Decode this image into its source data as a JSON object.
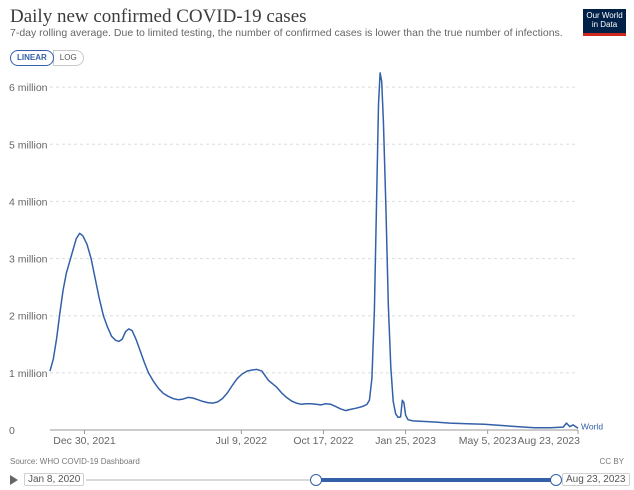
{
  "header": {
    "title": "Daily new confirmed COVID-19 cases",
    "subtitle": "7-day rolling average. Due to limited testing, the number of confirmed cases is lower than the true number of infections."
  },
  "logo": {
    "line1": "Our World",
    "line2": "in Data",
    "bg_color": "#002147",
    "accent_color": "#ce261e"
  },
  "controls": {
    "linear_label": "LINEAR",
    "log_label": "LOG",
    "active": "linear"
  },
  "footer": {
    "source": "Source: WHO COVID-19 Dashboard",
    "license": "CC BY"
  },
  "timeline": {
    "start_label": "Jan 8, 2020",
    "end_label": "Aug 23, 2023",
    "start_fraction": 0.49,
    "end_fraction": 1.0
  },
  "chart_data": {
    "type": "line",
    "xlabel": "",
    "ylabel": "",
    "line_color": "#3360a9",
    "grid": "horizontal-dashed",
    "yaxis_scale": "linear",
    "ylim": [
      0,
      6300000
    ],
    "xlim": [
      "2021-11-18",
      "2023-08-23"
    ],
    "y_ticks": [
      {
        "value": 0,
        "label": "0"
      },
      {
        "value": 1000000,
        "label": "1 million"
      },
      {
        "value": 2000000,
        "label": "2 million"
      },
      {
        "value": 3000000,
        "label": "3 million"
      },
      {
        "value": 4000000,
        "label": "4 million"
      },
      {
        "value": 5000000,
        "label": "5 million"
      },
      {
        "value": 6000000,
        "label": "6 million"
      }
    ],
    "x_ticks": [
      {
        "date": "2021-12-30",
        "label": "Dec 30, 2021"
      },
      {
        "date": "2022-07-09",
        "label": "Jul 9, 2022"
      },
      {
        "date": "2022-10-17",
        "label": "Oct 17, 2022"
      },
      {
        "date": "2023-01-25",
        "label": "Jan 25, 2023"
      },
      {
        "date": "2023-05-05",
        "label": "May 5, 2023"
      },
      {
        "date": "2023-08-23",
        "label": "Aug 23, 2023"
      }
    ],
    "series": [
      {
        "name": "World",
        "points": [
          [
            "2021-11-18",
            1030000
          ],
          [
            "2021-11-22",
            1240000
          ],
          [
            "2021-11-26",
            1600000
          ],
          [
            "2021-11-30",
            2050000
          ],
          [
            "2021-12-04",
            2450000
          ],
          [
            "2021-12-08",
            2750000
          ],
          [
            "2021-12-12",
            2950000
          ],
          [
            "2021-12-16",
            3150000
          ],
          [
            "2021-12-20",
            3350000
          ],
          [
            "2021-12-24",
            3440000
          ],
          [
            "2021-12-28",
            3400000
          ],
          [
            "2022-01-02",
            3250000
          ],
          [
            "2022-01-07",
            3000000
          ],
          [
            "2022-01-12",
            2650000
          ],
          [
            "2022-01-17",
            2300000
          ],
          [
            "2022-01-22",
            2000000
          ],
          [
            "2022-01-27",
            1800000
          ],
          [
            "2022-02-01",
            1640000
          ],
          [
            "2022-02-06",
            1570000
          ],
          [
            "2022-02-10",
            1550000
          ],
          [
            "2022-02-14",
            1590000
          ],
          [
            "2022-02-18",
            1720000
          ],
          [
            "2022-02-22",
            1770000
          ],
          [
            "2022-02-26",
            1740000
          ],
          [
            "2022-03-03",
            1580000
          ],
          [
            "2022-03-08",
            1380000
          ],
          [
            "2022-03-13",
            1180000
          ],
          [
            "2022-03-18",
            1000000
          ],
          [
            "2022-03-24",
            850000
          ],
          [
            "2022-03-30",
            730000
          ],
          [
            "2022-04-05",
            640000
          ],
          [
            "2022-04-11",
            590000
          ],
          [
            "2022-04-17",
            550000
          ],
          [
            "2022-04-23",
            530000
          ],
          [
            "2022-04-29",
            540000
          ],
          [
            "2022-05-05",
            570000
          ],
          [
            "2022-05-11",
            560000
          ],
          [
            "2022-05-17",
            530000
          ],
          [
            "2022-05-23",
            500000
          ],
          [
            "2022-05-29",
            480000
          ],
          [
            "2022-06-04",
            470000
          ],
          [
            "2022-06-10",
            490000
          ],
          [
            "2022-06-16",
            550000
          ],
          [
            "2022-06-22",
            650000
          ],
          [
            "2022-06-28",
            780000
          ],
          [
            "2022-07-04",
            900000
          ],
          [
            "2022-07-10",
            980000
          ],
          [
            "2022-07-16",
            1030000
          ],
          [
            "2022-07-22",
            1050000
          ],
          [
            "2022-07-28",
            1060000
          ],
          [
            "2022-08-03",
            1030000
          ],
          [
            "2022-08-07",
            950000
          ],
          [
            "2022-08-11",
            870000
          ],
          [
            "2022-08-15",
            820000
          ],
          [
            "2022-08-21",
            750000
          ],
          [
            "2022-08-27",
            650000
          ],
          [
            "2022-09-02",
            570000
          ],
          [
            "2022-09-08",
            510000
          ],
          [
            "2022-09-14",
            470000
          ],
          [
            "2022-09-20",
            450000
          ],
          [
            "2022-09-26",
            460000
          ],
          [
            "2022-10-02",
            460000
          ],
          [
            "2022-10-08",
            450000
          ],
          [
            "2022-10-14",
            440000
          ],
          [
            "2022-10-20",
            460000
          ],
          [
            "2022-10-26",
            450000
          ],
          [
            "2022-11-01",
            410000
          ],
          [
            "2022-11-07",
            370000
          ],
          [
            "2022-11-13",
            340000
          ],
          [
            "2022-11-19",
            360000
          ],
          [
            "2022-11-25",
            380000
          ],
          [
            "2022-12-01",
            400000
          ],
          [
            "2022-12-05",
            420000
          ],
          [
            "2022-12-09",
            450000
          ],
          [
            "2022-12-12",
            520000
          ],
          [
            "2022-12-15",
            900000
          ],
          [
            "2022-12-18",
            2100000
          ],
          [
            "2022-12-21",
            4200000
          ],
          [
            "2022-12-23",
            5700000
          ],
          [
            "2022-12-25",
            6250000
          ],
          [
            "2022-12-27",
            6100000
          ],
          [
            "2022-12-29",
            5400000
          ],
          [
            "2023-01-01",
            3900000
          ],
          [
            "2023-01-04",
            2200000
          ],
          [
            "2023-01-07",
            1100000
          ],
          [
            "2023-01-10",
            500000
          ],
          [
            "2023-01-13",
            280000
          ],
          [
            "2023-01-16",
            220000
          ],
          [
            "2023-01-19",
            230000
          ],
          [
            "2023-01-21",
            520000
          ],
          [
            "2023-01-23",
            480000
          ],
          [
            "2023-01-25",
            260000
          ],
          [
            "2023-01-28",
            180000
          ],
          [
            "2023-02-03",
            160000
          ],
          [
            "2023-02-15",
            150000
          ],
          [
            "2023-03-01",
            140000
          ],
          [
            "2023-03-20",
            120000
          ],
          [
            "2023-04-10",
            110000
          ],
          [
            "2023-05-01",
            100000
          ],
          [
            "2023-05-20",
            80000
          ],
          [
            "2023-06-10",
            60000
          ],
          [
            "2023-07-01",
            40000
          ],
          [
            "2023-07-20",
            40000
          ],
          [
            "2023-08-05",
            50000
          ],
          [
            "2023-08-09",
            120000
          ],
          [
            "2023-08-13",
            60000
          ],
          [
            "2023-08-17",
            90000
          ],
          [
            "2023-08-23",
            30000
          ]
        ]
      }
    ]
  }
}
